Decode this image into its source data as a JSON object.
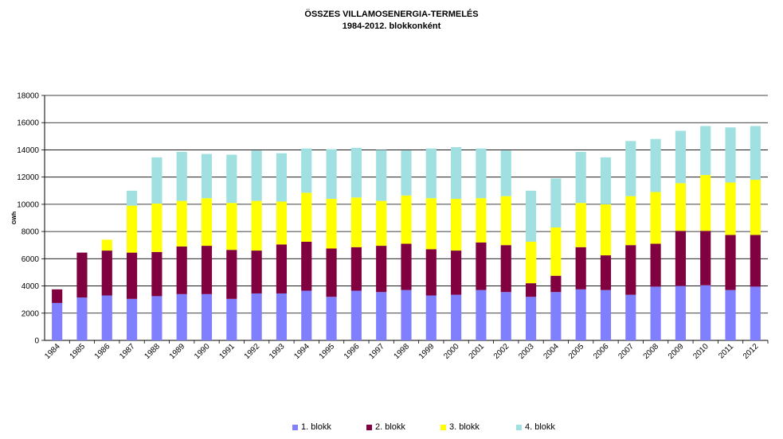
{
  "chart_data": {
    "type": "bar",
    "stacked": true,
    "title": "ÖSSZES VILLAMOSENERGIA-TERMELÉS",
    "subtitle": "1984-2012. blokkonként",
    "ylabel": "GWh",
    "ylim": [
      0,
      18000
    ],
    "yticks": [
      0,
      2000,
      4000,
      6000,
      8000,
      10000,
      12000,
      14000,
      16000,
      18000
    ],
    "ytick_labels": [
      "0",
      "2000",
      "4000",
      "6000",
      "8000",
      "10000",
      "12000",
      "14000",
      "16000",
      "18000"
    ],
    "grid": true,
    "legend_position": "bottom",
    "categories": [
      "1984",
      "1985",
      "1986",
      "1987",
      "1988",
      "1989",
      "1990",
      "1991",
      "1992",
      "1993",
      "1994",
      "1995",
      "1996",
      "1997",
      "1998",
      "1999",
      "2000",
      "2001",
      "2002",
      "2003",
      "2004",
      "2005",
      "2006",
      "2007",
      "2008",
      "2009",
      "2010",
      "2011",
      "2012"
    ],
    "series": [
      {
        "name": "1. blokk",
        "color": "#8080ff",
        "values": [
          2750,
          3150,
          3300,
          3050,
          3250,
          3400,
          3400,
          3050,
          3450,
          3450,
          3650,
          3200,
          3650,
          3550,
          3700,
          3300,
          3350,
          3700,
          3550,
          3200,
          3550,
          3750,
          3700,
          3350,
          3950,
          4000,
          4050,
          3700,
          3950
        ]
      },
      {
        "name": "2. blokk",
        "color": "#800040",
        "values": [
          1000,
          3300,
          3300,
          3400,
          3250,
          3500,
          3550,
          3600,
          3150,
          3600,
          3600,
          3550,
          3200,
          3400,
          3400,
          3400,
          3250,
          3500,
          3450,
          1000,
          1200,
          3100,
          2550,
          3650,
          3150,
          4050,
          4000,
          4050,
          3800
        ]
      },
      {
        "name": "3. blokk",
        "color": "#ffff00",
        "values": [
          0,
          0,
          800,
          3450,
          3550,
          3350,
          3500,
          3450,
          3650,
          3150,
          3600,
          3650,
          3650,
          3300,
          3550,
          3750,
          3800,
          3250,
          3600,
          3050,
          3550,
          3250,
          3750,
          3600,
          3800,
          3500,
          4100,
          3850,
          4050
        ]
      },
      {
        "name": "4. blokk",
        "color": "#a0e0e0",
        "values": [
          0,
          0,
          0,
          1100,
          3400,
          3600,
          3250,
          3550,
          3700,
          3550,
          3250,
          3650,
          3650,
          3750,
          3300,
          3650,
          3800,
          3650,
          3350,
          3750,
          3600,
          3750,
          3450,
          4050,
          3900,
          3850,
          3600,
          4050,
          3950
        ]
      }
    ]
  }
}
